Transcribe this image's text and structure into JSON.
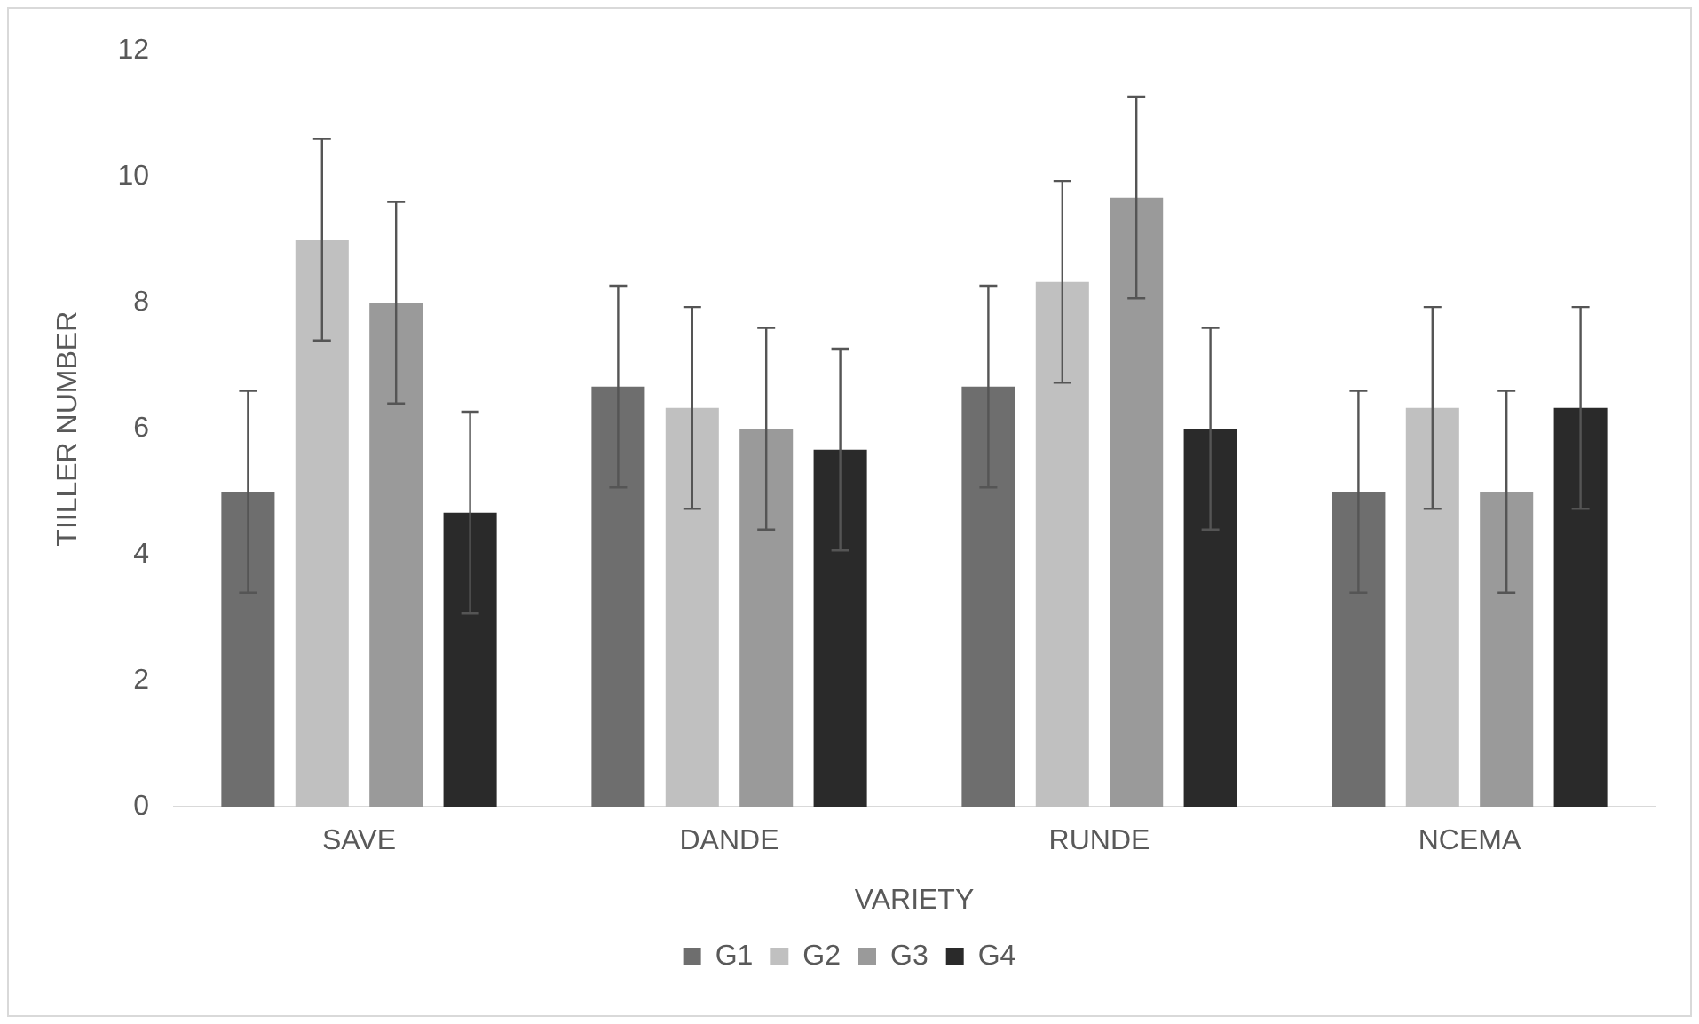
{
  "chart_data": {
    "type": "bar",
    "xlabel": "VARIETY",
    "ylabel": "TIILLER NUMBER",
    "categories": [
      "SAVE",
      "DANDE",
      "RUNDE",
      "NCEMA"
    ],
    "series": [
      {
        "name": "G1",
        "color": "#6e6e6e",
        "values": [
          5.0,
          6.67,
          6.67,
          5.0
        ],
        "errors": [
          1.6,
          1.6,
          1.6,
          1.6
        ]
      },
      {
        "name": "G2",
        "color": "#c0c0c0",
        "values": [
          9.0,
          6.33,
          8.33,
          6.33
        ],
        "errors": [
          1.6,
          1.6,
          1.6,
          1.6
        ]
      },
      {
        "name": "G3",
        "color": "#9a9a9a",
        "values": [
          8.0,
          6.0,
          9.67,
          5.0
        ],
        "errors": [
          1.6,
          1.6,
          1.6,
          1.6
        ]
      },
      {
        "name": "G4",
        "color": "#2a2a2a",
        "values": [
          4.67,
          5.67,
          6.0,
          6.33
        ],
        "errors": [
          1.6,
          1.6,
          1.6,
          1.6
        ]
      }
    ],
    "ylim": [
      0,
      12
    ],
    "yticks": [
      0,
      2,
      4,
      6,
      8,
      10,
      12
    ],
    "grid": false,
    "legend": "bottom"
  }
}
